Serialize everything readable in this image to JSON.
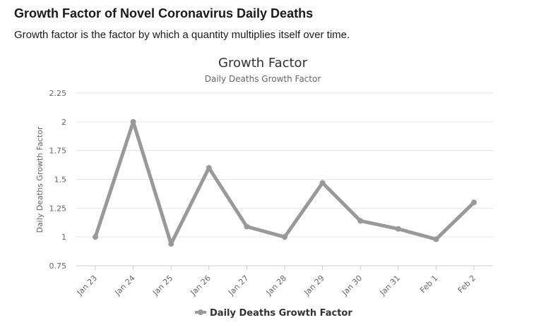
{
  "page": {
    "heading": "Growth Factor of Novel Coronavirus Daily Deaths",
    "subheading": "Growth factor is the factor by which a quantity multiplies itself over time."
  },
  "chart_data": {
    "type": "line",
    "title": "Growth Factor",
    "subtitle": "Daily Deaths Growth Factor",
    "xlabel": "",
    "ylabel": "Daily Deaths Growth Factor",
    "categories": [
      "Jan 23",
      "Jan 24",
      "Jan 25",
      "Jan 26",
      "Jan 27",
      "Jan 28",
      "Jan 29",
      "Jan 30",
      "Jan 31",
      "Feb 1",
      "Feb 2"
    ],
    "series": [
      {
        "name": "Daily Deaths Growth Factor",
        "color": "#999999",
        "values": [
          1.0,
          2.0,
          0.94,
          1.6,
          1.09,
          1.0,
          1.47,
          1.14,
          1.07,
          0.98,
          1.3
        ]
      }
    ],
    "ylim": [
      0.75,
      2.25
    ],
    "yticks": [
      "0.75",
      "1",
      "1.25",
      "1.5",
      "1.75",
      "2",
      "2.25"
    ],
    "grid": true,
    "legend_position": "bottom-center"
  }
}
